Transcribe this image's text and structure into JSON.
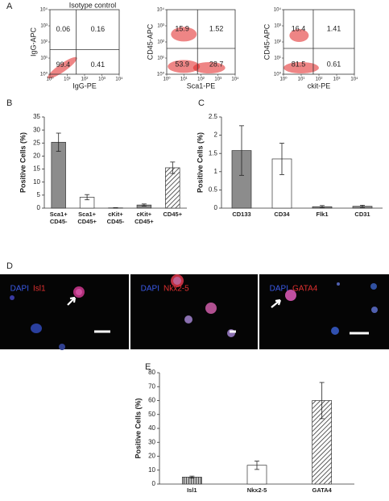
{
  "panel_letters": [
    "A",
    "B",
    "C",
    "D",
    "E"
  ],
  "flow_plots": [
    {
      "title": "Isotype control",
      "ylabel": "IgG-APC",
      "xlabel": "IgG-PE",
      "quadrants": {
        "upper_left": 0.06,
        "upper_right": 0.16,
        "lower_left": 99.4,
        "lower_right": 0.41
      }
    },
    {
      "ylabel": "CD45-APC",
      "xlabel": "Sca1-PE",
      "quadrants": {
        "upper_left": 15.9,
        "upper_right": 1.52,
        "lower_left": 53.9,
        "lower_right": 28.7
      }
    },
    {
      "ylabel": "CD45-APC",
      "xlabel": "ckit-PE",
      "quadrants": {
        "upper_left": 16.4,
        "upper_right": 1.41,
        "lower_left": 81.5,
        "lower_right": 0.61
      }
    }
  ],
  "flow_axis": {
    "log": true,
    "lim": [
      1,
      10000
    ],
    "ticks": [
      {
        "value": 1,
        "label": "10⁰"
      },
      {
        "value": 10,
        "label": "10¹"
      },
      {
        "value": 100,
        "label": "10²"
      },
      {
        "value": 1000,
        "label": "10³"
      },
      {
        "value": 10000,
        "label": "10⁴"
      }
    ]
  },
  "chart_data": [
    {
      "type": "bar",
      "ylabel": "Positive Cells (%)",
      "categories": [
        "Sca1+\nCD45-",
        "Sca1+\nCD45+",
        "cKit+\nCD45-",
        "cKit+\nCD45+",
        "CD45+"
      ],
      "values": [
        25.3,
        4.2,
        0.1,
        1.2,
        15.5
      ],
      "errors": [
        3.5,
        1,
        0.1,
        0.4,
        2.2
      ],
      "colors": [
        "#8c8c8c",
        "#ffffff",
        "#8c8c8c",
        "#8c8c8c",
        "#ffffff"
      ],
      "patterns": [
        "solid",
        "solid",
        "solid",
        "solid",
        "diagonal"
      ],
      "ylim": [
        0,
        35
      ],
      "yticks": [
        0,
        5,
        10,
        15,
        20,
        25,
        30,
        35
      ]
    },
    {
      "type": "bar",
      "ylabel": "Positive Cells (%)",
      "categories": [
        "CD133",
        "CD34",
        "Flk1",
        "CD31"
      ],
      "values": [
        1.58,
        1.35,
        0.04,
        0.05
      ],
      "errors": [
        0.68,
        0.43,
        0.03,
        0.03
      ],
      "colors": [
        "#8c8c8c",
        "#ffffff",
        "#8c8c8c",
        "#8c8c8c"
      ],
      "patterns": [
        "solid",
        "solid",
        "solid",
        "solid"
      ],
      "ylim": [
        0,
        2.5
      ],
      "yticks": [
        0,
        0.5,
        1,
        1.5,
        2,
        2.5
      ]
    },
    {
      "type": "bar",
      "ylabel": "Positive Cells (%)",
      "categories": [
        "Isl1",
        "Nkx2-5",
        "GATA4"
      ],
      "values": [
        5,
        13.5,
        60
      ],
      "errors": [
        0.7,
        3,
        13
      ],
      "colors": [
        "#9a9a9a",
        "#ffffff",
        "#ffffff"
      ],
      "patterns": [
        "vertical",
        "solid",
        "diagonal"
      ],
      "ylim": [
        0,
        80
      ],
      "yticks": [
        0,
        10,
        20,
        30,
        40,
        50,
        60,
        70,
        80
      ]
    }
  ],
  "images": [
    {
      "stain": "DAPI",
      "marker": "Isl1"
    },
    {
      "stain": "DAPI",
      "marker": "Nkx2-5"
    },
    {
      "stain": "DAPI",
      "marker": "GATA4"
    }
  ]
}
